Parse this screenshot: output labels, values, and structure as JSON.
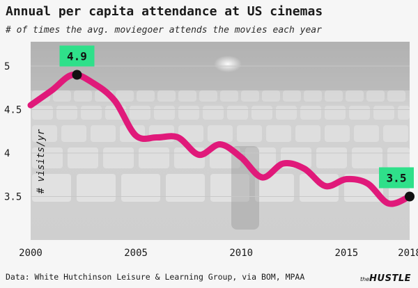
{
  "header": {
    "title": "Annual per capita attendance at US cinemas",
    "subtitle": "# of times the avg. moviegoer attends the movies each year"
  },
  "footer": {
    "source": "Data: White Hutchinson Leisure & Learning Group, via BOM, MPAA",
    "brand_prefix": "the",
    "brand_name": "HUSTLE"
  },
  "colors": {
    "line": "#e0197a",
    "callout_bg": "#2fe08a",
    "marker": "#111111",
    "grid": "#c8c8c8"
  },
  "chart_data": {
    "type": "line",
    "title": "Annual per capita attendance at US cinemas",
    "subtitle": "# of times the avg. moviegoer attends the movies each year",
    "xlabel": "",
    "ylabel": "# visits/yr",
    "x": [
      2000,
      2001,
      2002,
      2003,
      2004,
      2005,
      2006,
      2007,
      2008,
      2009,
      2010,
      2011,
      2012,
      2013,
      2014,
      2015,
      2016,
      2017,
      2018
    ],
    "series": [
      {
        "values": [
          4.55,
          4.72,
          4.9,
          4.8,
          4.6,
          4.2,
          4.18,
          4.18,
          3.98,
          4.1,
          3.95,
          3.72,
          3.88,
          3.82,
          3.62,
          3.7,
          3.65,
          3.42,
          3.5
        ]
      }
    ],
    "xlim": [
      2000,
      2018
    ],
    "ylim": [
      3.0,
      5.28
    ],
    "x_ticks": [
      "2000",
      "2005",
      "2010",
      "2015",
      "2018"
    ],
    "y_ticks": [
      "3.5",
      "4",
      "4.5",
      "5"
    ],
    "grid": true,
    "annotations": [
      {
        "x": 2002.2,
        "y": 4.9,
        "label": "4.9"
      },
      {
        "x": 2018,
        "y": 3.5,
        "label": "3.5"
      }
    ]
  }
}
